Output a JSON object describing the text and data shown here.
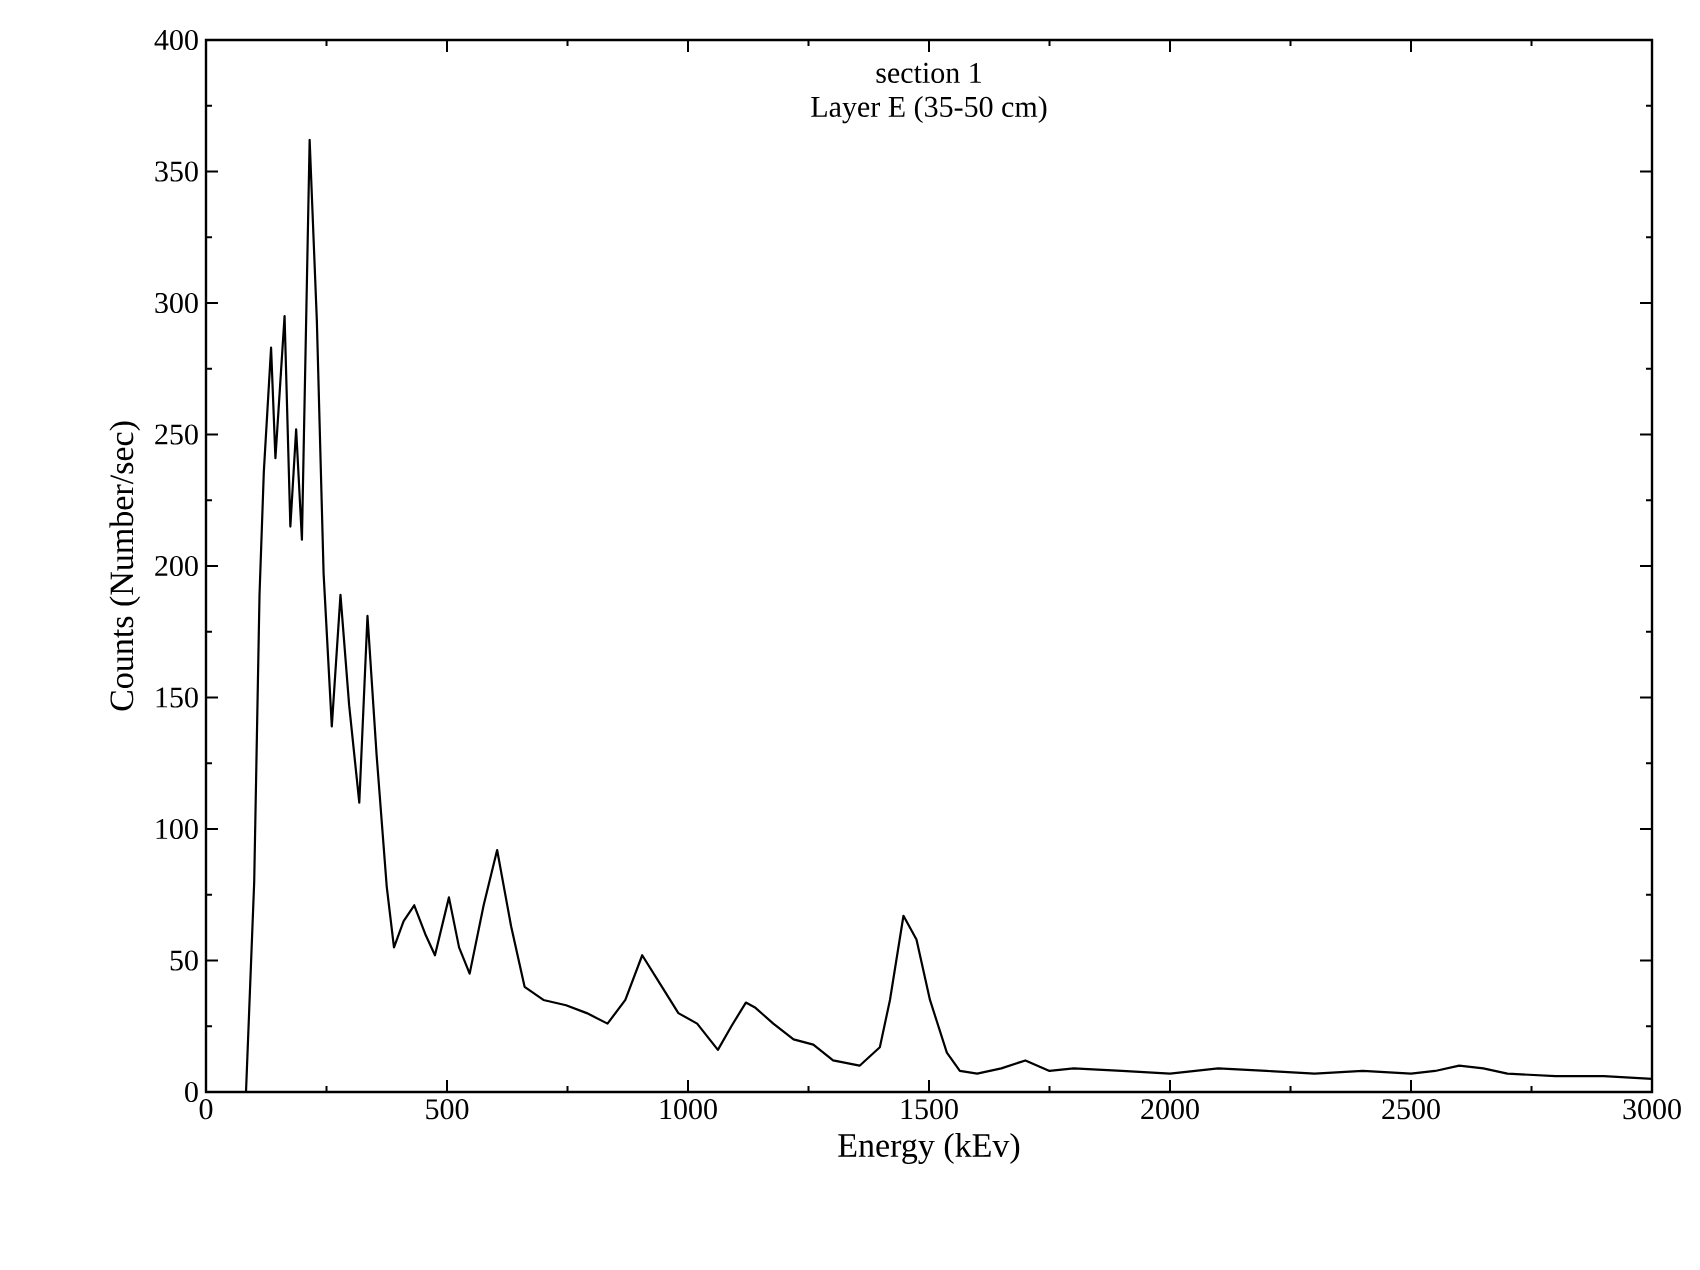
{
  "chart_data": {
    "type": "line",
    "title": "section 1",
    "subtitle": "Layer E (35-50 cm)",
    "xlabel": "Energy (kEv)",
    "ylabel": "Counts (Number/sec)",
    "xlim": [
      0,
      3000
    ],
    "ylim": [
      0,
      400
    ],
    "xticks": [
      0,
      500,
      1000,
      1500,
      2000,
      2500,
      3000
    ],
    "yticks": [
      0,
      50,
      100,
      150,
      200,
      250,
      300,
      350,
      400
    ],
    "grid": false,
    "marker": "none",
    "line_style": "solid",
    "series": [
      {
        "color": "#000000",
        "x": [
          45,
          83,
          100,
          111,
          120,
          135,
          144,
          163,
          175,
          187,
          199,
          215,
          230,
          244,
          261,
          279,
          297,
          318,
          335,
          354,
          375,
          390,
          410,
          432,
          455,
          475,
          504,
          525,
          547,
          576,
          604,
          633,
          661,
          700,
          747,
          790,
          833,
          870,
          905,
          946,
          980,
          1019,
          1062,
          1090,
          1120,
          1140,
          1177,
          1219,
          1260,
          1301,
          1356,
          1398,
          1419,
          1447,
          1474,
          1502,
          1537,
          1564,
          1600,
          1650,
          1700,
          1750,
          1800,
          1900,
          2000,
          2100,
          2200,
          2300,
          2400,
          2500,
          2550,
          2600,
          2650,
          2700,
          2800,
          2900,
          3000
        ],
        "values": [
          0,
          0,
          80,
          189,
          236,
          283,
          241,
          295,
          215,
          252,
          210,
          362,
          293,
          197,
          139,
          189,
          147,
          110,
          181,
          128,
          78,
          55,
          65,
          71,
          60,
          52,
          74,
          55,
          45,
          71,
          92,
          63,
          40,
          35,
          33,
          30,
          26,
          35,
          52,
          40,
          30,
          26,
          16,
          25,
          34,
          32,
          26,
          20,
          18,
          12,
          10,
          17,
          35,
          67,
          58,
          35,
          15,
          8,
          7,
          9,
          12,
          8,
          9,
          8,
          7,
          9,
          8,
          7,
          8,
          7,
          8,
          10,
          9,
          7,
          6,
          6,
          5
        ]
      }
    ]
  }
}
